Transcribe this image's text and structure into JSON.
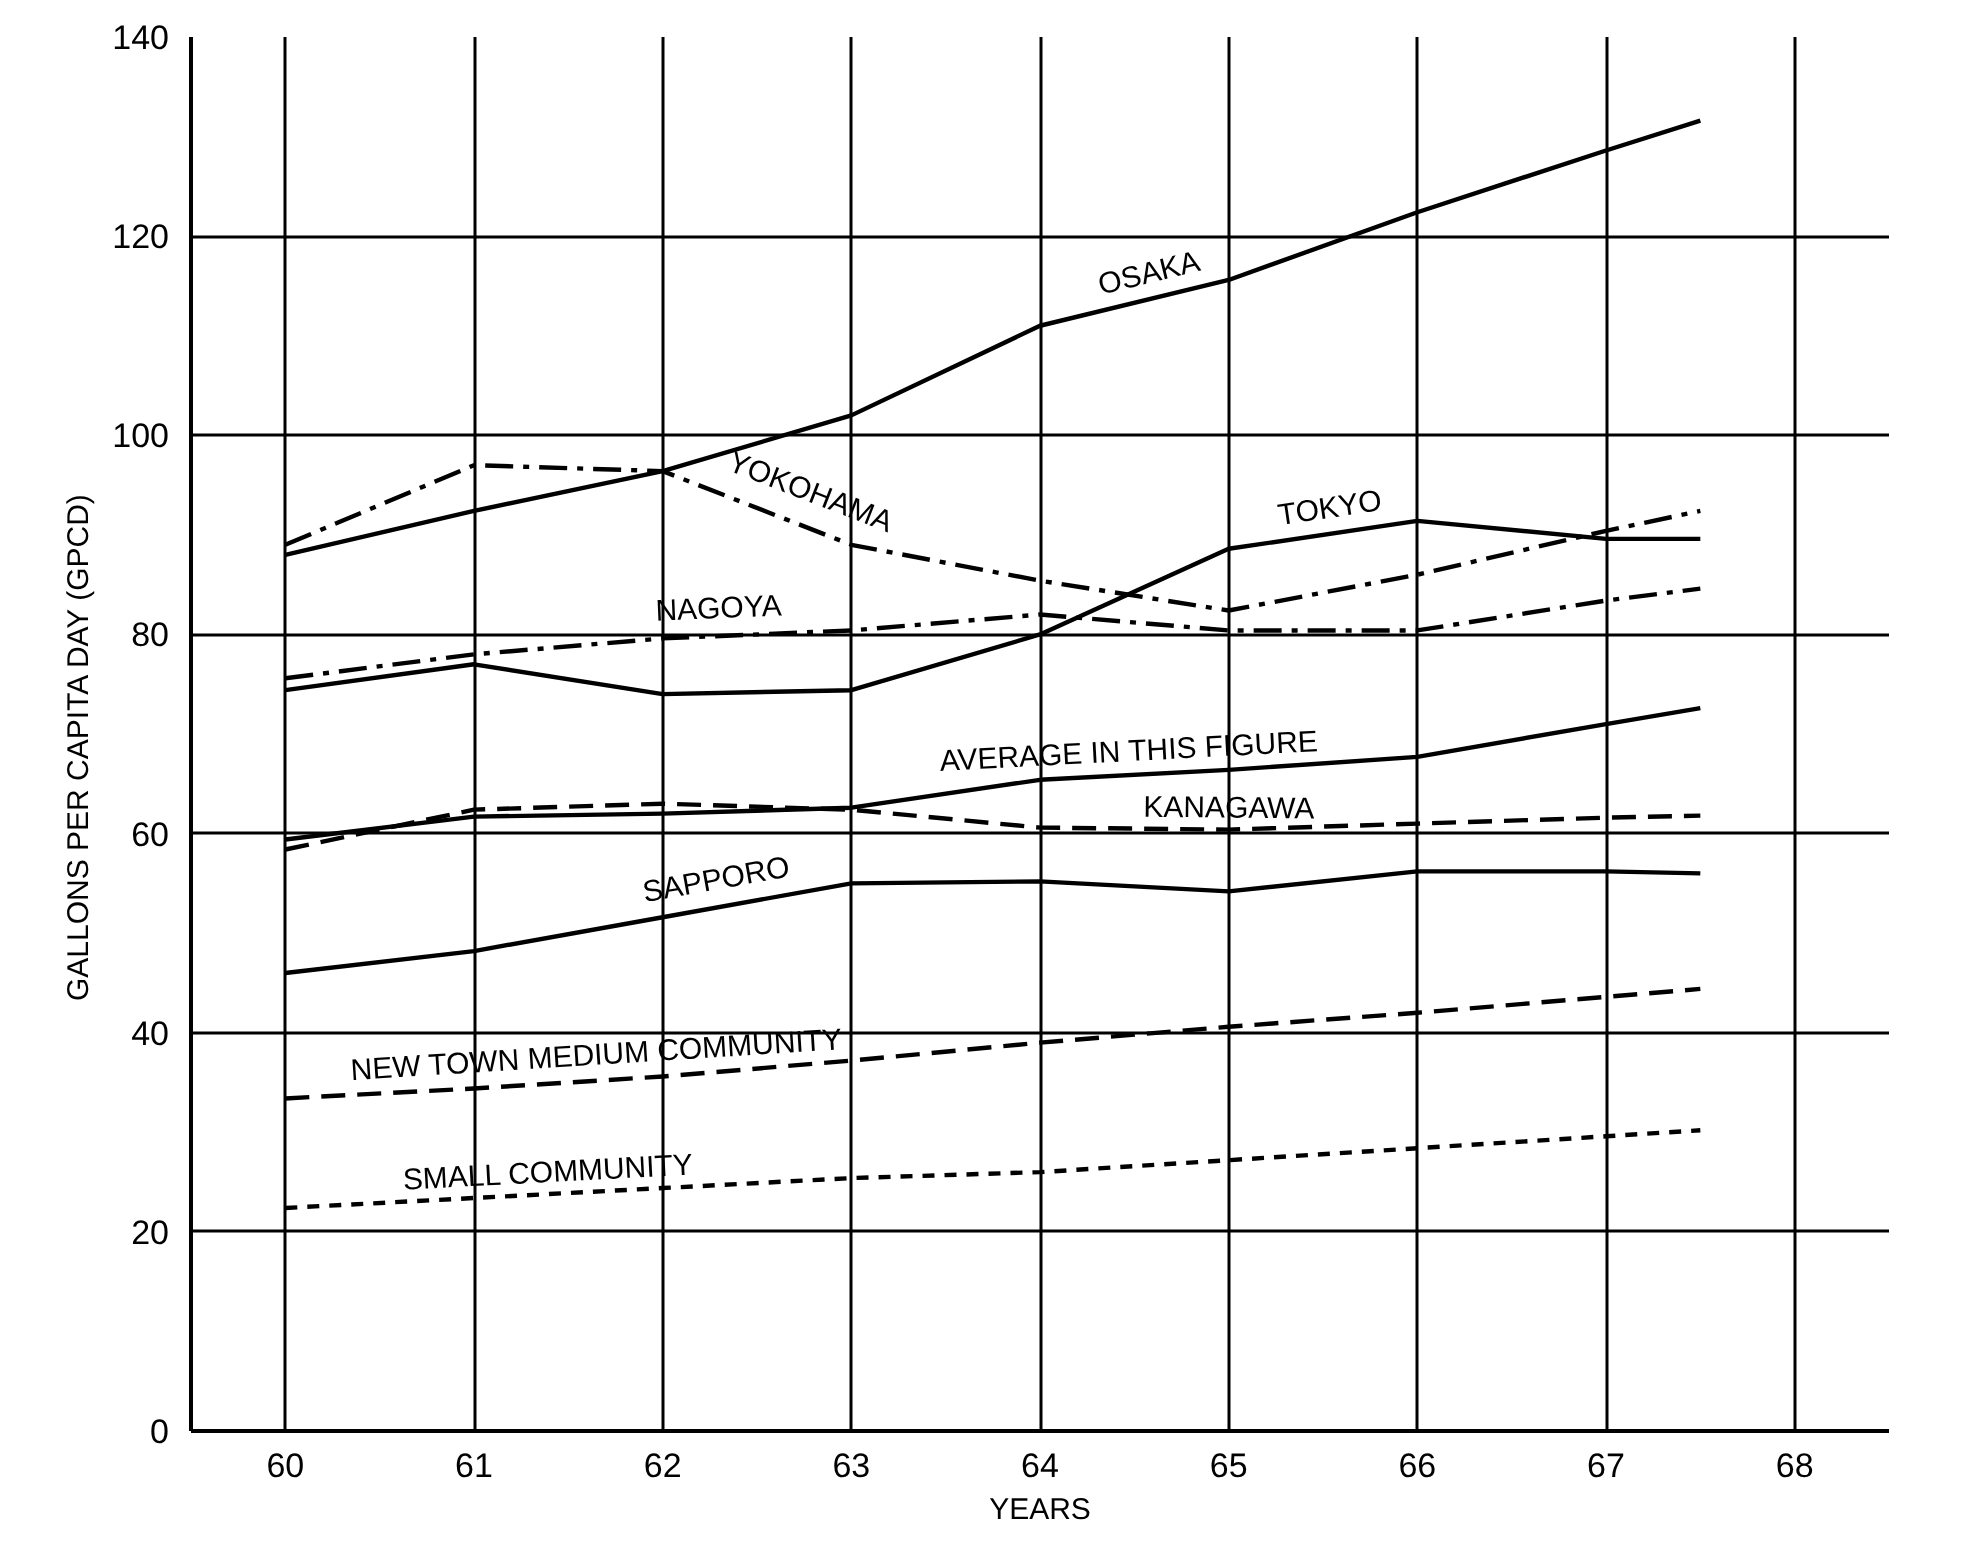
{
  "chart_data": {
    "type": "line",
    "x": [
      60,
      61,
      62,
      63,
      64,
      65,
      66,
      67,
      67.5
    ],
    "xlabel": "YEARS",
    "ylabel": "GALLONS  PER CAPITA  DAY  (GPCD)",
    "xlim": [
      59.5,
      68.5
    ],
    "ylim": [
      0,
      140
    ],
    "xticks": [
      60,
      61,
      62,
      63,
      64,
      65,
      66,
      67,
      68
    ],
    "yticks": [
      0,
      20,
      40,
      60,
      80,
      100,
      120,
      140
    ],
    "grid": true,
    "legend": false,
    "series": [
      {
        "name": "OSAKA",
        "color": "#000000",
        "line_style": "solid",
        "values": [
          88,
          92.4,
          96.4,
          102,
          111,
          115.6,
          122.4,
          128.6,
          131.6
        ]
      },
      {
        "name": "YOKOHAMA",
        "color": "#000000",
        "line_style": "dashdot",
        "values": [
          89,
          97,
          96.4,
          89,
          85.4,
          82.4,
          86,
          90.4,
          92.4
        ]
      },
      {
        "name": "TOKYO",
        "color": "#000000",
        "line_style": "solid",
        "values": [
          74.4,
          77,
          74,
          74.4,
          80,
          88.6,
          91.4,
          89.6,
          89.6
        ]
      },
      {
        "name": "NAGOYA",
        "color": "#000000",
        "line_style": "dashdot",
        "values": [
          75.6,
          78,
          79.6,
          80.4,
          82,
          80.4,
          80.4,
          83.4,
          84.6
        ]
      },
      {
        "name": "AVERAGE  IN THIS FIGURE",
        "color": "#000000",
        "line_style": "solid",
        "values": [
          59.4,
          61.7,
          62,
          62.6,
          65.4,
          66.4,
          67.7,
          71,
          72.6
        ]
      },
      {
        "name": "KANAGAWA",
        "color": "#000000",
        "line_style": "dashed",
        "values": [
          58.4,
          62.4,
          63,
          62.4,
          60.6,
          60.4,
          61,
          61.6,
          61.8
        ]
      },
      {
        "name": "SAPPORO",
        "color": "#000000",
        "line_style": "solid",
        "values": [
          46,
          48.2,
          51.6,
          55,
          55.2,
          54.2,
          56.2,
          56.2,
          56
        ]
      },
      {
        "name": "NEW TOWN  MEDIUM  COMMUNITY",
        "color": "#000000",
        "line_style": "dashed",
        "values": [
          33.4,
          34.4,
          35.6,
          37.2,
          39,
          40.6,
          42,
          43.6,
          44.4
        ]
      },
      {
        "name": "SMALL COMMUNITY",
        "color": "#000000",
        "line_style": "dotted",
        "values": [
          22.4,
          23.4,
          24.4,
          25.4,
          26,
          27.2,
          28.4,
          29.6,
          30.2
        ]
      }
    ]
  }
}
